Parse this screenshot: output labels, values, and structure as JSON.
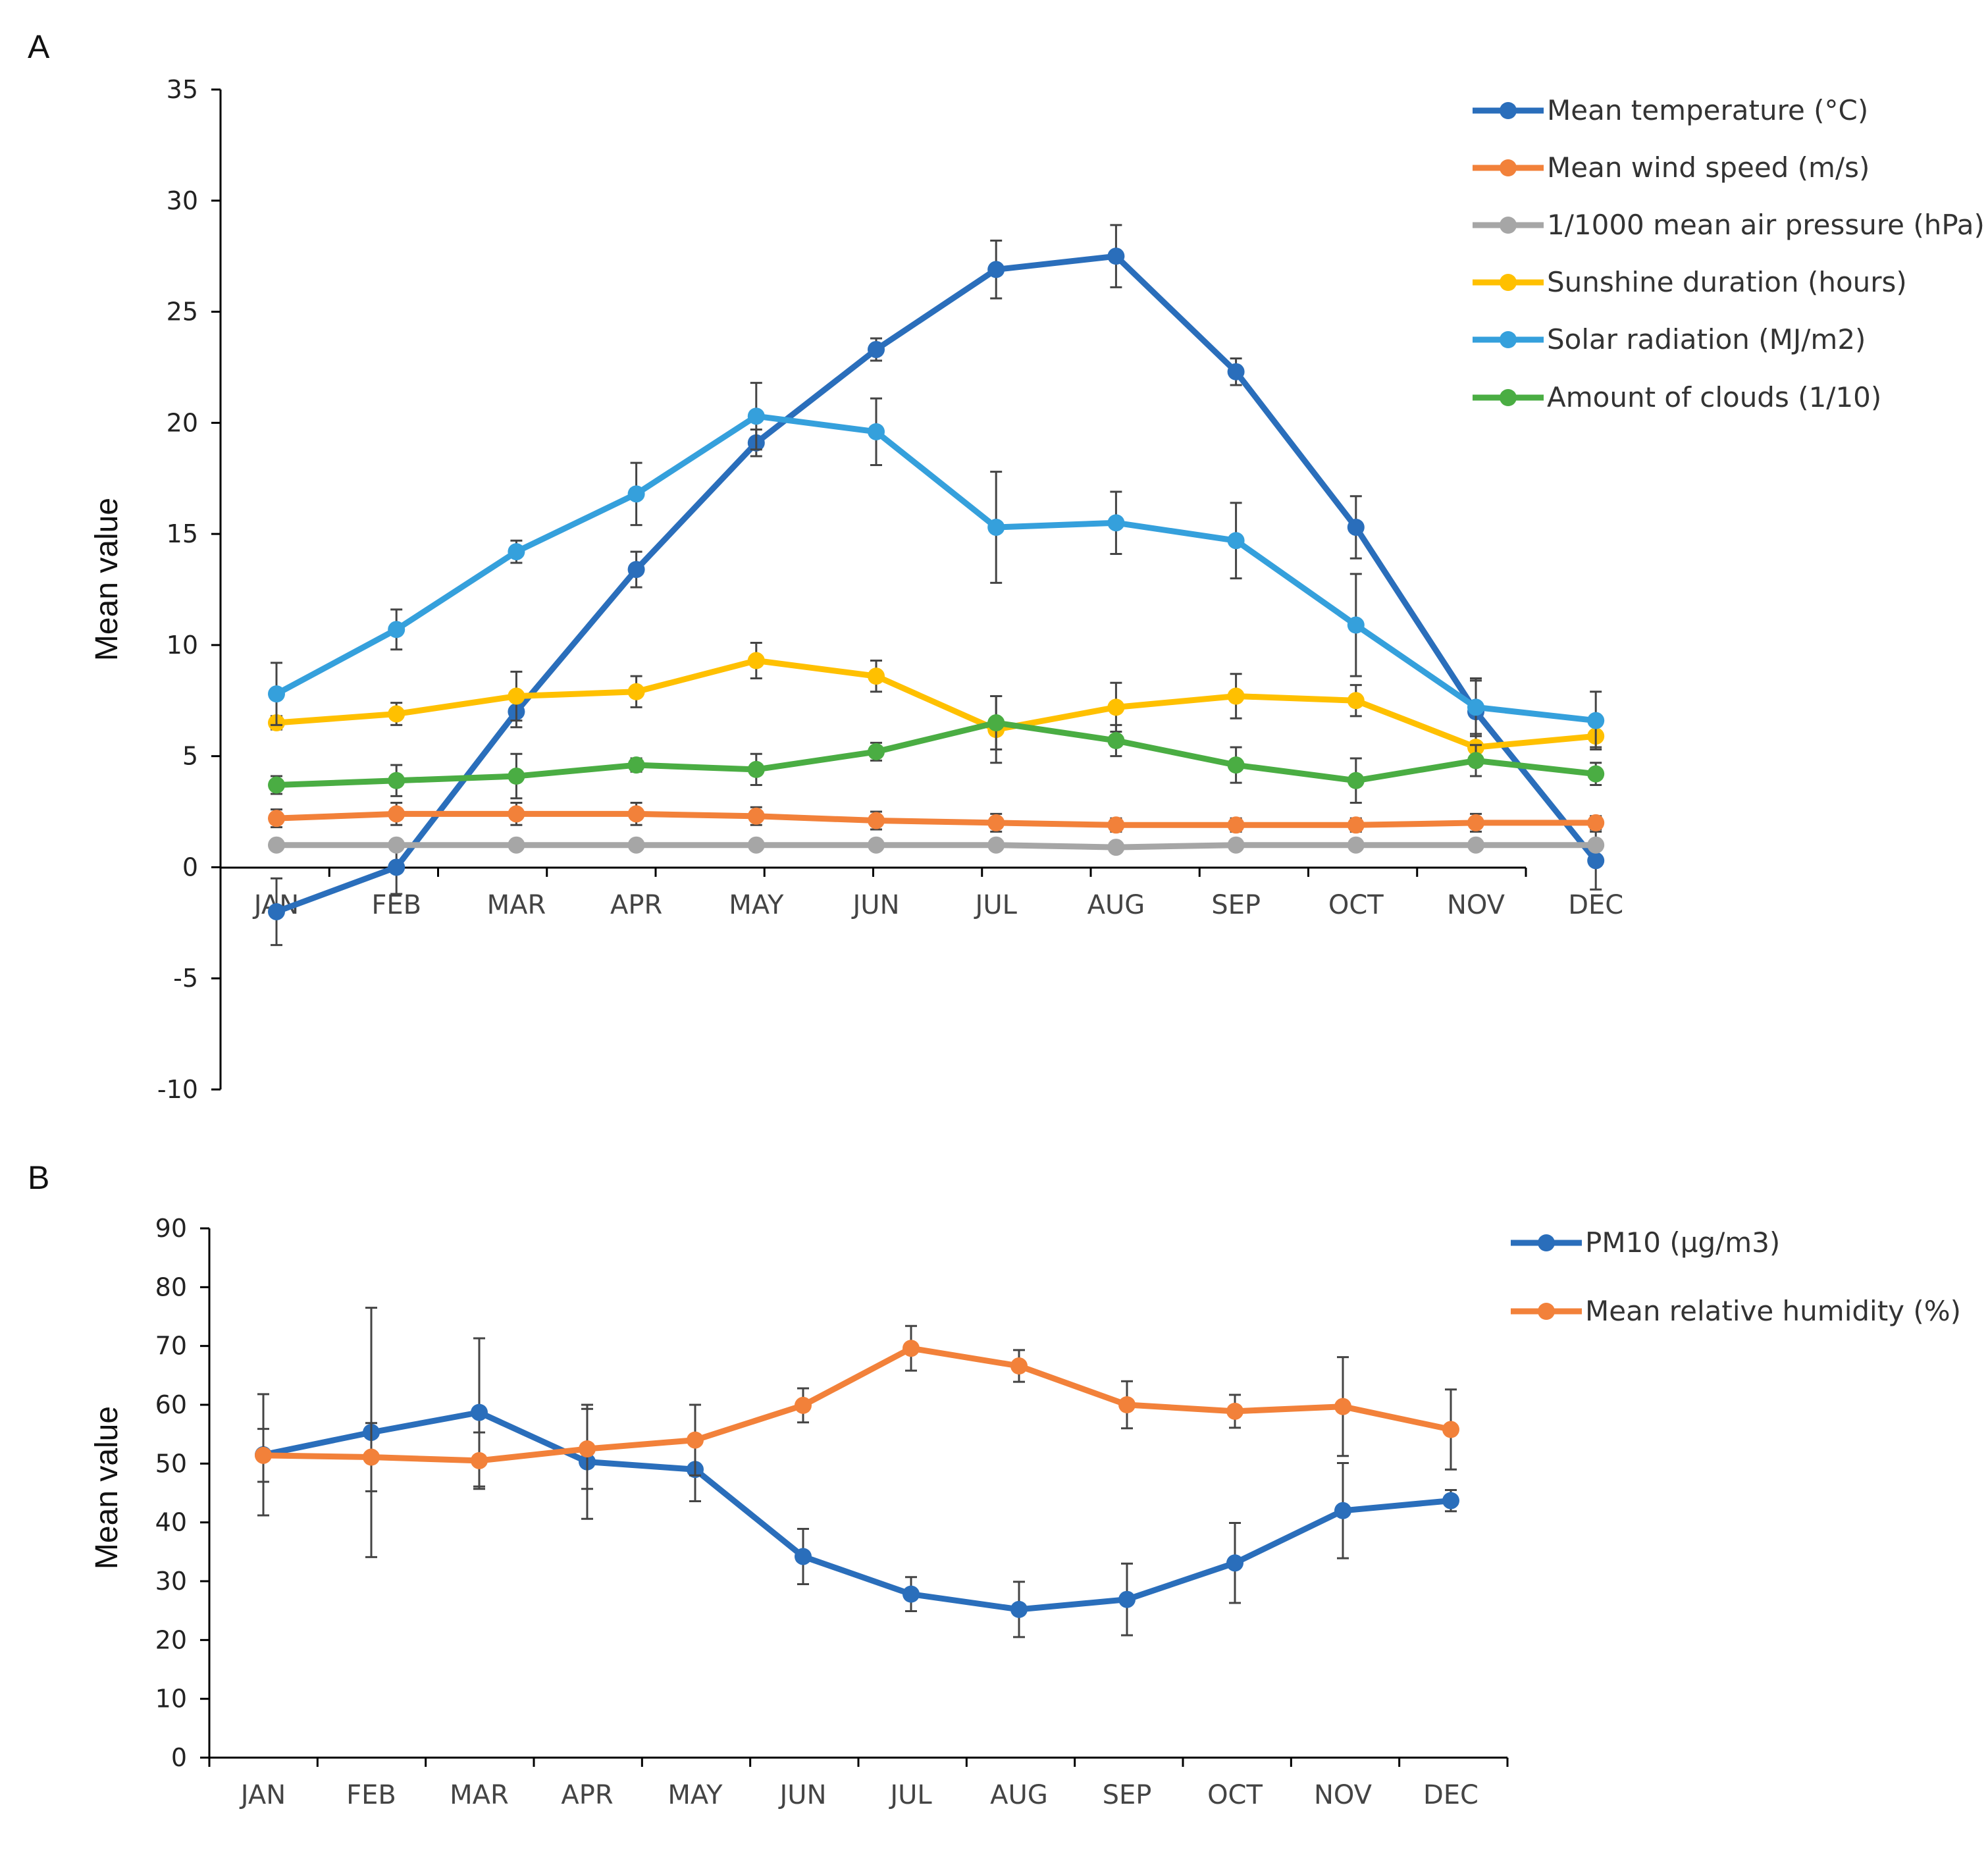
{
  "chart_data": [
    {
      "id": "A",
      "type": "line",
      "panel_label": "A",
      "title": "",
      "xlabel": "",
      "ylabel": "Mean value",
      "ylim": [
        -10,
        35
      ],
      "yticks": [
        -10,
        -5,
        0,
        5,
        10,
        15,
        20,
        25,
        30,
        35
      ],
      "categories": [
        "JAN",
        "FEB",
        "MAR",
        "APR",
        "MAY",
        "JUN",
        "JUL",
        "AUG",
        "SEP",
        "OCT",
        "NOV",
        "DEC"
      ],
      "legend_position": "top-right",
      "series": [
        {
          "name": "Mean temperature (°C)",
          "color": "#2a6ebb",
          "values": [
            -2.0,
            0.0,
            7.0,
            13.4,
            19.1,
            23.3,
            26.9,
            27.5,
            22.3,
            15.3,
            7.0,
            0.3
          ],
          "errors": [
            1.5,
            1.2,
            0.7,
            0.8,
            0.6,
            0.5,
            1.3,
            1.4,
            0.6,
            1.4,
            1.4,
            1.3
          ]
        },
        {
          "name": "Mean wind speed (m/s)",
          "color": "#f2813a",
          "values": [
            2.2,
            2.4,
            2.4,
            2.4,
            2.3,
            2.1,
            2.0,
            1.9,
            1.9,
            1.9,
            2.0,
            2.0
          ],
          "errors": [
            0.4,
            0.5,
            0.5,
            0.5,
            0.4,
            0.4,
            0.4,
            0.3,
            0.3,
            0.3,
            0.4,
            0.3
          ]
        },
        {
          "name": "1/1000 mean air pressure (hPa)",
          "color": "#a6a6a6",
          "values": [
            1.0,
            1.0,
            1.0,
            1.0,
            1.0,
            1.0,
            1.0,
            0.9,
            1.0,
            1.0,
            1.0,
            1.0
          ],
          "errors": [
            0,
            0,
            0,
            0,
            0,
            0,
            0,
            0,
            0,
            0,
            0,
            0
          ]
        },
        {
          "name": "Sunshine duration (hours)",
          "color": "#ffc000",
          "values": [
            6.5,
            6.9,
            7.7,
            7.9,
            9.3,
            8.6,
            6.2,
            7.2,
            7.7,
            7.5,
            5.4,
            5.9
          ],
          "errors": [
            0.3,
            0.5,
            1.1,
            0.7,
            0.8,
            0.7,
            1.5,
            1.1,
            1.0,
            0.7,
            0.6,
            0.5
          ]
        },
        {
          "name": "Solar radiation (MJ/m2)",
          "color": "#35a0dc",
          "values": [
            7.8,
            10.7,
            14.2,
            16.8,
            20.3,
            19.6,
            15.3,
            15.5,
            14.7,
            10.9,
            7.2,
            6.6
          ],
          "errors": [
            1.4,
            0.9,
            0.5,
            1.4,
            1.5,
            1.5,
            2.5,
            1.4,
            1.7,
            2.3,
            1.3,
            1.3
          ]
        },
        {
          "name": "Amount of clouds (1/10)",
          "color": "#4aad43",
          "values": [
            3.7,
            3.9,
            4.1,
            4.6,
            4.4,
            5.2,
            6.5,
            5.7,
            4.6,
            3.9,
            4.8,
            4.2
          ],
          "errors": [
            0.4,
            0.7,
            1.0,
            0.3,
            0.7,
            0.4,
            1.2,
            0.7,
            0.8,
            1.0,
            0.7,
            0.5
          ]
        }
      ]
    },
    {
      "id": "B",
      "type": "line",
      "panel_label": "B",
      "title": "",
      "xlabel": "",
      "ylabel": "Mean value",
      "ylim": [
        0,
        90
      ],
      "yticks": [
        0,
        10,
        20,
        30,
        40,
        50,
        60,
        70,
        80,
        90
      ],
      "categories": [
        "JAN",
        "FEB",
        "MAR",
        "APR",
        "MAY",
        "JUN",
        "JUL",
        "AUG",
        "SEP",
        "OCT",
        "NOV",
        "DEC"
      ],
      "legend_position": "top-right",
      "series": [
        {
          "name": "PM10 (µg/m3)",
          "color": "#2a6ebb",
          "values": [
            51.5,
            55.3,
            58.7,
            50.3,
            49.0,
            34.2,
            27.8,
            25.2,
            26.9,
            33.1,
            42.0,
            43.7
          ],
          "errors": [
            10.3,
            21.2,
            12.6,
            9.7,
            5.4,
            4.7,
            2.9,
            4.7,
            6.1,
            6.8,
            8.1,
            1.8
          ]
        },
        {
          "name": "Mean relative humidity (%)",
          "color": "#f2813a",
          "values": [
            51.4,
            51.1,
            50.5,
            52.5,
            54.0,
            59.9,
            69.6,
            66.6,
            60.0,
            58.9,
            59.7,
            55.8
          ],
          "errors": [
            4.5,
            5.8,
            4.8,
            6.8,
            6.0,
            2.9,
            3.8,
            2.7,
            4.0,
            2.8,
            8.4,
            6.8
          ]
        }
      ]
    }
  ]
}
